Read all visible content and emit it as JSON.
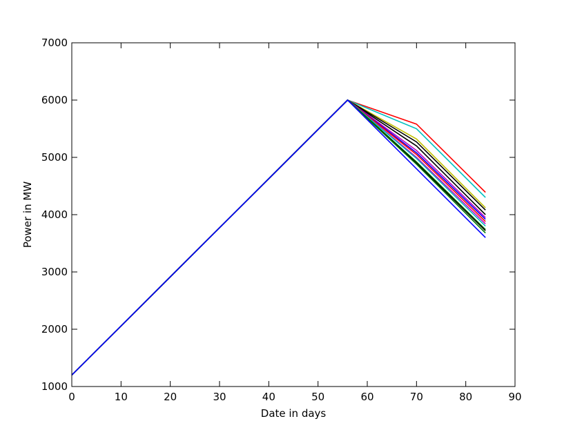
{
  "chart_data": {
    "type": "line",
    "xlabel": "Date in days",
    "ylabel": "Power in  MW",
    "x": [
      0,
      56,
      70,
      84
    ],
    "series": [
      {
        "color": "#ff0000",
        "values": [
          1200,
          6000,
          5580,
          4390
        ]
      },
      {
        "color": "#00bfbf",
        "values": [
          1200,
          6000,
          5500,
          4300
        ]
      },
      {
        "color": "#bfbf00",
        "values": [
          1200,
          6000,
          5320,
          4120
        ]
      },
      {
        "color": "#000000",
        "values": [
          1200,
          6000,
          5270,
          4080
        ]
      },
      {
        "color": "#000000",
        "values": [
          1200,
          6000,
          5200,
          4000
        ]
      },
      {
        "color": "#bf00bf",
        "values": [
          1200,
          6000,
          5120,
          3950
        ]
      },
      {
        "color": "#0000ff",
        "values": [
          1200,
          6000,
          5080,
          3920
        ]
      },
      {
        "color": "#ff0000",
        "values": [
          1200,
          6000,
          5050,
          3880
        ]
      },
      {
        "color": "#bf00bf",
        "values": [
          1200,
          6000,
          5000,
          3840
        ]
      },
      {
        "color": "#00bfbf",
        "values": [
          1200,
          6000,
          4980,
          3800
        ]
      },
      {
        "color": "#008000",
        "values": [
          1200,
          6000,
          4920,
          3740
        ]
      },
      {
        "color": "#000000",
        "values": [
          1200,
          6000,
          4900,
          3720
        ]
      },
      {
        "color": "#008000",
        "values": [
          1200,
          6000,
          4880,
          3680
        ]
      },
      {
        "color": "#0000ff",
        "values": [
          1200,
          6000,
          4800,
          3600
        ]
      }
    ],
    "xlim": [
      0,
      90
    ],
    "xticks": [
      0,
      10,
      20,
      30,
      40,
      50,
      60,
      70,
      80,
      90
    ],
    "ylim": [
      1000,
      7000
    ],
    "yticks": [
      1000,
      2000,
      3000,
      4000,
      5000,
      6000,
      7000
    ],
    "grid": false
  }
}
